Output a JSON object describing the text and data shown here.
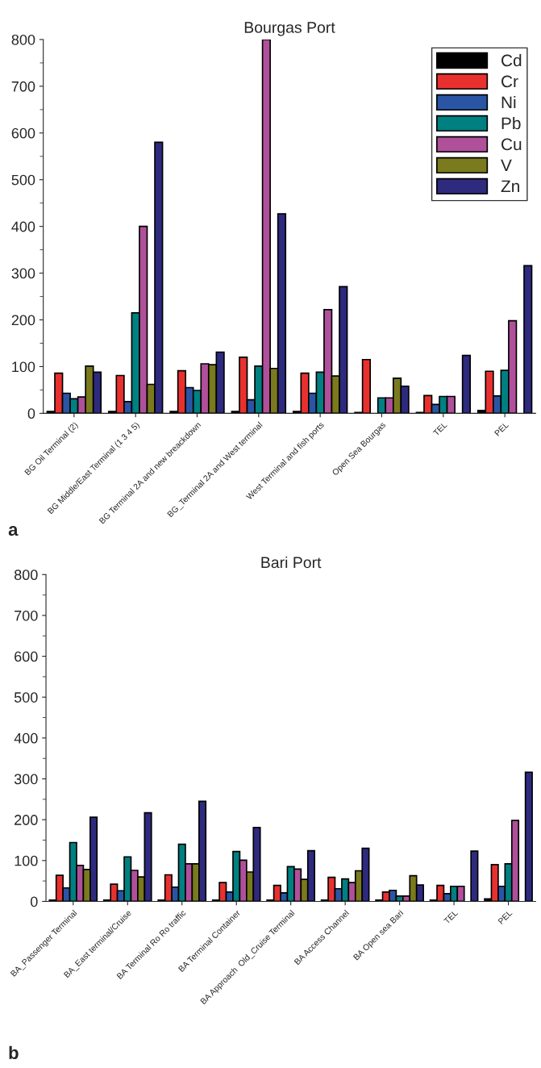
{
  "chart_data": [
    {
      "type": "bar",
      "title": "Bourgas Port",
      "annotations": [
        "a"
      ],
      "categories": [
        "BG Oil Terminal (2)",
        "BG Middle/East Terminal (1 3 4 5)",
        "BG Terminal 2A and new breackdown",
        "BG_Terminal 2A and West terminal",
        "West Terminal and fish ports",
        "Open Sea Bourgas",
        "TEL",
        "PEL"
      ],
      "series": [
        {
          "name": "Cd",
          "color": "#000000",
          "values": [
            4,
            4,
            4,
            4,
            4,
            2,
            2,
            6
          ]
        },
        {
          "name": "Cr",
          "color": "#e8312f",
          "values": [
            86,
            81,
            91,
            120,
            86,
            115,
            38,
            90
          ]
        },
        {
          "name": "Ni",
          "color": "#2a55a5",
          "values": [
            43,
            25,
            55,
            29,
            43,
            null,
            19,
            37
          ]
        },
        {
          "name": "Pb",
          "color": "#008080",
          "values": [
            31,
            215,
            49,
            101,
            88,
            33,
            36,
            92
          ]
        },
        {
          "name": "Cu",
          "color": "#b0509a",
          "values": [
            35,
            400,
            106,
            800,
            222,
            33,
            36,
            198
          ]
        },
        {
          "name": "V",
          "color": "#7a7a1e",
          "values": [
            101,
            62,
            104,
            96,
            80,
            75,
            null,
            null
          ]
        },
        {
          "name": "Zn",
          "color": "#2e2a7e",
          "values": [
            88,
            580,
            131,
            427,
            271,
            58,
            124,
            316
          ]
        }
      ],
      "ylim": [
        0,
        800
      ],
      "yticks": [
        0,
        100,
        200,
        300,
        400,
        500,
        600,
        700,
        800
      ],
      "legend": "top right"
    },
    {
      "type": "bar",
      "title": "Bari Port",
      "annotations": [
        "b"
      ],
      "categories": [
        "BA_Passenger Terminal",
        "BA_East terminal/Cruise",
        "BA Terminal Ro Ro traffic",
        "BA Terminal Container",
        "BA Approach  Old_Cruise Terminal",
        "BA Access Channel",
        "BA Open sea Bari",
        "TEL",
        "PEL"
      ],
      "series": [
        {
          "color": "#000000",
          "values": [
            3,
            3,
            3,
            3,
            3,
            3,
            3,
            3,
            6
          ]
        },
        {
          "color": "#e8312f",
          "values": [
            64,
            42,
            65,
            46,
            39,
            59,
            23,
            39,
            90
          ]
        },
        {
          "color": "#2a55a5",
          "values": [
            33,
            26,
            35,
            23,
            21,
            31,
            27,
            19,
            37
          ]
        },
        {
          "color": "#008080",
          "values": [
            144,
            109,
            140,
            122,
            85,
            55,
            13,
            37,
            92
          ]
        },
        {
          "color": "#b0509a",
          "values": [
            88,
            76,
            92,
            101,
            79,
            46,
            13,
            37,
            198
          ]
        },
        {
          "color": "#7a7a1e",
          "values": [
            78,
            60,
            92,
            72,
            54,
            75,
            63,
            null,
            null
          ]
        },
        {
          "color": "#2e2a7e",
          "values": [
            206,
            217,
            245,
            181,
            124,
            130,
            40,
            123,
            316
          ]
        }
      ],
      "ylim": [
        0,
        800
      ],
      "yticks": [
        0,
        100,
        200,
        300,
        400,
        500,
        600,
        700,
        800
      ],
      "legend": false
    }
  ]
}
